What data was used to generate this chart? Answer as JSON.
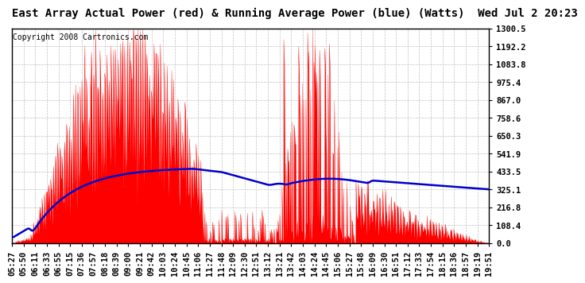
{
  "title": "East Array Actual Power (red) & Running Average Power (blue) (Watts)  Wed Jul 2 20:23",
  "copyright": "Copyright 2008 Cartronics.com",
  "ylabel_max": 1300.5,
  "ytick_values": [
    0.0,
    108.4,
    216.8,
    325.1,
    433.5,
    541.9,
    650.3,
    758.6,
    867.0,
    975.4,
    1083.8,
    1192.2,
    1300.5
  ],
  "xtick_labels": [
    "05:27",
    "05:50",
    "06:11",
    "06:33",
    "06:55",
    "07:15",
    "07:36",
    "07:57",
    "08:18",
    "08:39",
    "09:00",
    "09:21",
    "09:42",
    "10:03",
    "10:24",
    "10:45",
    "11:06",
    "11:27",
    "11:48",
    "12:09",
    "12:30",
    "12:51",
    "13:12",
    "13:21",
    "13:42",
    "14:03",
    "14:24",
    "14:45",
    "15:06",
    "15:27",
    "15:48",
    "16:09",
    "16:30",
    "16:51",
    "17:12",
    "17:33",
    "17:54",
    "18:15",
    "18:36",
    "18:57",
    "19:19",
    "19:51"
  ],
  "red_color": "#ff0000",
  "blue_color": "#0000cc",
  "bg_color": "#ffffff",
  "grid_color": "#c0c0c0",
  "title_fontsize": 10,
  "copyright_fontsize": 7,
  "tick_fontsize": 7.5
}
